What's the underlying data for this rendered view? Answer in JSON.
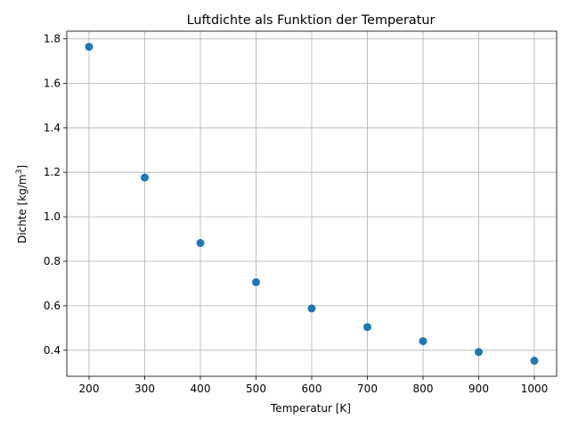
{
  "chart_data": {
    "type": "scatter",
    "title": "Luftdichte als Funktion der Temperatur",
    "xlabel": "Temperatur [K]",
    "ylabel": "Dichte [kg/m",
    "ylabel_superscript": "3",
    "ylabel_suffix": "]",
    "x": [
      200,
      300,
      400,
      500,
      600,
      700,
      800,
      900,
      1000
    ],
    "y": [
      1.764,
      1.176,
      0.882,
      0.706,
      0.588,
      0.504,
      0.441,
      0.392,
      0.353
    ],
    "xlim": [
      160,
      1040
    ],
    "ylim": [
      0.283,
      1.834
    ],
    "xticks": [
      200,
      300,
      400,
      500,
      600,
      700,
      800,
      900,
      1000
    ],
    "xtick_labels": [
      "200",
      "300",
      "400",
      "500",
      "600",
      "700",
      "800",
      "900",
      "1000"
    ],
    "yticks": [
      0.4,
      0.6,
      0.8,
      1.0,
      1.2,
      1.4,
      1.6,
      1.8
    ],
    "ytick_labels": [
      "0.4",
      "0.6",
      "0.8",
      "1.0",
      "1.2",
      "1.4",
      "1.6",
      "1.8"
    ],
    "grid": true,
    "marker_color": "#1f77b4",
    "grid_color": "#b0b0b0"
  }
}
